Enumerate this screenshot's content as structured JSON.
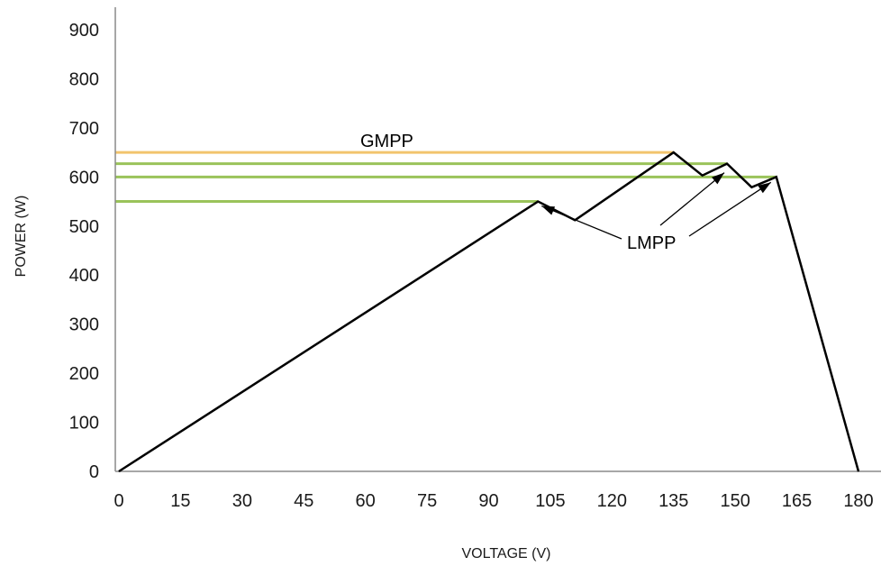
{
  "chart_data": {
    "type": "line",
    "title": "",
    "xlabel": "VOLTAGE (V)",
    "ylabel": "POWER (W)",
    "xlim": [
      0,
      180
    ],
    "ylim": [
      0,
      900
    ],
    "x_ticks": [
      "0",
      "15",
      "30",
      "45",
      "60",
      "75",
      "90",
      "105",
      "120",
      "135",
      "150",
      "165",
      "180"
    ],
    "y_ticks": [
      "0",
      "100",
      "200",
      "300",
      "400",
      "500",
      "600",
      "700",
      "800",
      "900"
    ],
    "grid": false,
    "series": [
      {
        "color": "#000000",
        "x": [
          0,
          102,
          111,
          135,
          142,
          148,
          154,
          160,
          180
        ],
        "y": [
          0,
          550,
          512,
          650,
          603,
          627,
          579,
          600,
          0
        ]
      }
    ],
    "reference_lines": [
      {
        "y": 650,
        "x_end": 135,
        "color": "#f2c46d"
      },
      {
        "y": 627,
        "x_end": 148,
        "color": "#9ac35a"
      },
      {
        "y": 600,
        "x_end": 160,
        "color": "#9ac35a"
      },
      {
        "y": 550,
        "x_end": 102,
        "color": "#9ac35a"
      }
    ],
    "annotations": [
      {
        "text": "GMPP"
      },
      {
        "text": "LMPP"
      }
    ]
  }
}
